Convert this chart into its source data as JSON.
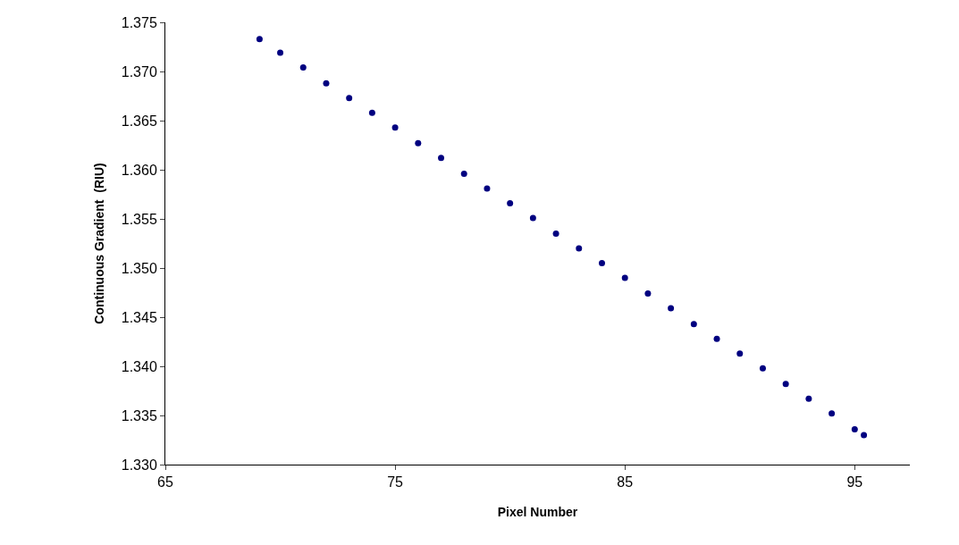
{
  "chart_data": {
    "type": "scatter",
    "xlabel": "Pixel Number",
    "ylabel": "Continuous Gradient  (RIU)",
    "x": [
      69.1,
      70,
      71,
      72,
      73,
      74,
      75,
      76,
      77,
      78,
      79,
      80,
      81,
      82,
      83,
      84,
      85,
      86,
      87,
      88,
      89,
      90,
      91,
      92,
      93,
      94,
      95,
      95.4
    ],
    "series": [
      {
        "color": "#000080",
        "values": [
          1.3733,
          1.3719,
          1.3704,
          1.3688,
          1.3673,
          1.3658,
          1.3643,
          1.3627,
          1.3612,
          1.3596,
          1.3581,
          1.3566,
          1.3551,
          1.3535,
          1.352,
          1.3505,
          1.349,
          1.3474,
          1.3459,
          1.3443,
          1.3428,
          1.3413,
          1.3398,
          1.3382,
          1.3367,
          1.3352,
          1.3336,
          1.333
        ]
      }
    ],
    "marker": "circle",
    "xlim": [
      65,
      97.4
    ],
    "xticks": [
      65,
      75,
      85,
      95
    ],
    "ylim": [
      1.33,
      1.375
    ],
    "yticks": [
      {
        "value": 1.33,
        "label": "1.330"
      },
      1.335,
      {
        "value": 1.34,
        "label": "1.340"
      },
      1.345,
      {
        "value": 1.35,
        "label": "1.350"
      },
      1.355,
      {
        "value": 1.36,
        "label": "1.360"
      },
      1.365,
      {
        "value": 1.37,
        "label": "1.370"
      },
      1.375
    ]
  }
}
